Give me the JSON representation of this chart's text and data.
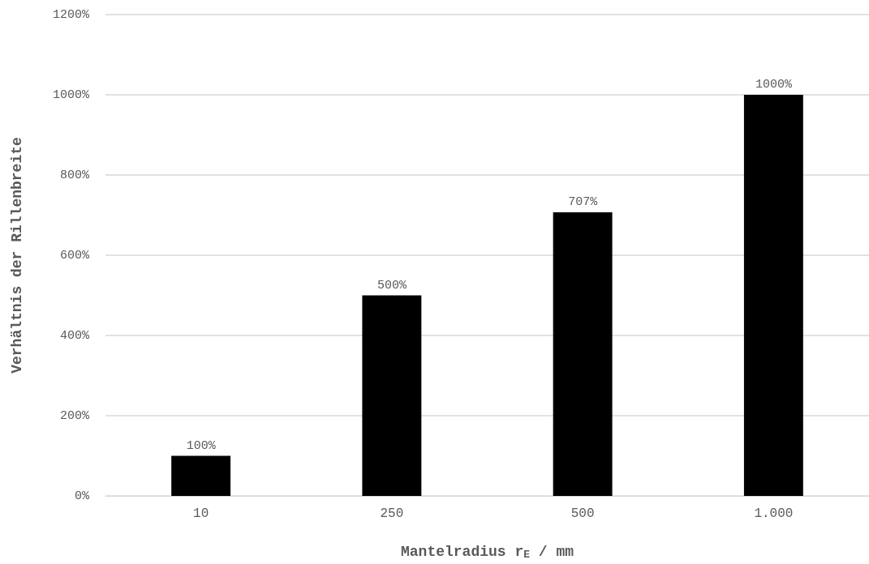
{
  "chart_data": {
    "type": "bar",
    "xlabel": "Mantelradius r$_{E}$ / mm",
    "ylabel": "Verhältnis der Rillenbreite",
    "categories": [
      "10",
      "250",
      "500",
      "1.000"
    ],
    "values": [
      100,
      500,
      707,
      1000
    ],
    "color": "#000000",
    "value_labels": [
      "100%",
      "500%",
      "707%",
      "1000%"
    ],
    "ylim": [
      0,
      1200
    ],
    "yticks": [
      {
        "value": 0,
        "label": "0%"
      },
      {
        "value": 200,
        "label": "200%"
      },
      {
        "value": 400,
        "label": "400%"
      },
      {
        "value": 600,
        "label": "600%"
      },
      {
        "value": 800,
        "label": "800%"
      },
      {
        "value": 1000,
        "label": "1000%"
      },
      {
        "value": 1200,
        "label": "1200%"
      }
    ],
    "grid": "y"
  }
}
